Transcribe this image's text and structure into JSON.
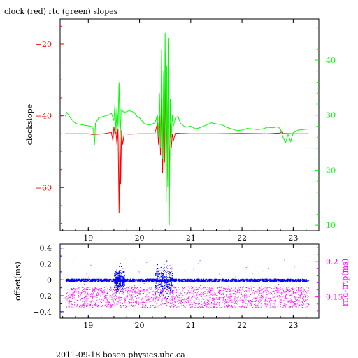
{
  "title": "clock (red) rtc (green) slopes",
  "footer": "2011-09-18 boson.physics.ubc.ca",
  "colors": {
    "clock": "#ff0000",
    "rtc": "#00ff00",
    "offset": "#0000ff",
    "rndtrip": "#ff00ff",
    "frame": "#000000"
  },
  "chart_data": [
    {
      "type": "line",
      "title": "clock (red) rtc (green) slopes",
      "x_range": [
        18.45,
        23.5
      ],
      "x_ticks": [
        19,
        20,
        21,
        22,
        23
      ],
      "y_left": {
        "label": "clockslope",
        "range": [
          -72,
          -13
        ],
        "ticks": [
          -60,
          -40,
          -20
        ]
      },
      "y_right": {
        "label": "",
        "range": [
          9,
          47.5
        ],
        "ticks": [
          10,
          20,
          30,
          40
        ]
      },
      "series": [
        {
          "axis": "left",
          "color": "#ff0000",
          "points": [
            [
              18.55,
              -45
            ],
            [
              19.0,
              -45
            ],
            [
              19.1,
              -45.2
            ],
            [
              19.3,
              -45
            ],
            [
              19.45,
              -44.6
            ],
            [
              19.48,
              -47
            ],
            [
              19.5,
              -43
            ],
            [
              19.52,
              -45
            ],
            [
              19.54,
              -44.5
            ],
            [
              19.56,
              -48
            ],
            [
              19.58,
              -43.5
            ],
            [
              19.6,
              -67
            ],
            [
              19.62,
              -41.5
            ],
            [
              19.63,
              -59
            ],
            [
              19.65,
              -44
            ],
            [
              19.67,
              -48
            ],
            [
              19.7,
              -45
            ],
            [
              19.8,
              -45.1
            ],
            [
              20.0,
              -45
            ],
            [
              20.2,
              -45
            ],
            [
              20.3,
              -45
            ],
            [
              20.35,
              -42
            ],
            [
              20.37,
              -48
            ],
            [
              20.39,
              -40
            ],
            [
              20.41,
              -51
            ],
            [
              20.43,
              -35
            ],
            [
              20.45,
              -56
            ],
            [
              20.47,
              -40
            ],
            [
              20.49,
              -53
            ],
            [
              20.5,
              -22
            ],
            [
              20.52,
              -61
            ],
            [
              20.53,
              -34
            ],
            [
              20.55,
              -58
            ],
            [
              20.56,
              -20
            ],
            [
              20.58,
              -59
            ],
            [
              20.6,
              -42
            ],
            [
              20.62,
              -49
            ],
            [
              20.64,
              -45
            ],
            [
              20.66,
              -47
            ],
            [
              20.7,
              -44.8
            ],
            [
              20.8,
              -44.9
            ],
            [
              21.0,
              -45
            ],
            [
              21.5,
              -45
            ],
            [
              22.0,
              -44.9
            ],
            [
              22.5,
              -45
            ],
            [
              22.75,
              -44.8
            ],
            [
              22.78,
              -44.2
            ],
            [
              22.8,
              -44.9
            ],
            [
              23.0,
              -45
            ],
            [
              23.3,
              -45
            ]
          ]
        },
        {
          "axis": "right",
          "color": "#00ff00",
          "points": [
            [
              18.55,
              29.8
            ],
            [
              18.58,
              30.5
            ],
            [
              18.65,
              29.5
            ],
            [
              18.75,
              28.5
            ],
            [
              18.9,
              28.2
            ],
            [
              19.05,
              28
            ],
            [
              19.1,
              27.5
            ],
            [
              19.12,
              24.5
            ],
            [
              19.14,
              28.5
            ],
            [
              19.2,
              29.5
            ],
            [
              19.3,
              29.8
            ],
            [
              19.4,
              30
            ],
            [
              19.45,
              30.4
            ],
            [
              19.5,
              29
            ],
            [
              19.52,
              32
            ],
            [
              19.54,
              27
            ],
            [
              19.56,
              31.5
            ],
            [
              19.58,
              28
            ],
            [
              19.6,
              36
            ],
            [
              19.62,
              25
            ],
            [
              19.64,
              31
            ],
            [
              19.7,
              30.5
            ],
            [
              19.8,
              30.8
            ],
            [
              19.9,
              30.5
            ],
            [
              19.95,
              29.8
            ],
            [
              20.0,
              29.5
            ],
            [
              20.1,
              28.4
            ],
            [
              20.2,
              28.2
            ],
            [
              20.3,
              28.6
            ],
            [
              20.35,
              30
            ],
            [
              20.37,
              26
            ],
            [
              20.39,
              34
            ],
            [
              20.41,
              24
            ],
            [
              20.43,
              42
            ],
            [
              20.45,
              22
            ],
            [
              20.47,
              38
            ],
            [
              20.48,
              20
            ],
            [
              20.5,
              45
            ],
            [
              20.52,
              14
            ],
            [
              20.53,
              39
            ],
            [
              20.55,
              17
            ],
            [
              20.56,
              44
            ],
            [
              20.58,
              10
            ],
            [
              20.6,
              33
            ],
            [
              20.62,
              26
            ],
            [
              20.64,
              30
            ],
            [
              20.66,
              28
            ],
            [
              20.7,
              29.5
            ],
            [
              20.75,
              29.8
            ],
            [
              20.8,
              28.5
            ],
            [
              20.9,
              27.8
            ],
            [
              21.0,
              28
            ],
            [
              21.1,
              27.5
            ],
            [
              21.2,
              27.8
            ],
            [
              21.3,
              28.2
            ],
            [
              21.4,
              28.6
            ],
            [
              21.5,
              28.4
            ],
            [
              21.6,
              28.3
            ],
            [
              21.7,
              27.8
            ],
            [
              21.8,
              27.5
            ],
            [
              21.9,
              27.2
            ],
            [
              22.0,
              27.3
            ],
            [
              22.1,
              27.6
            ],
            [
              22.2,
              27.5
            ],
            [
              22.3,
              27.4
            ],
            [
              22.4,
              27.5
            ],
            [
              22.5,
              27.8
            ],
            [
              22.6,
              27.7
            ],
            [
              22.7,
              27.9
            ],
            [
              22.75,
              27.5
            ],
            [
              22.8,
              26
            ],
            [
              22.85,
              25
            ],
            [
              22.9,
              26.5
            ],
            [
              22.95,
              25.2
            ],
            [
              23.0,
              26.8
            ],
            [
              23.1,
              27.3
            ],
            [
              23.2,
              27.4
            ],
            [
              23.3,
              27.5
            ]
          ]
        }
      ]
    },
    {
      "type": "scatter",
      "title": "",
      "x_range": [
        18.45,
        23.5
      ],
      "x_ticks": [
        19,
        20,
        21,
        22,
        23
      ],
      "y_left": {
        "label": "offset(ms)",
        "range": [
          -0.48,
          0.45
        ],
        "ticks": [
          -0.4,
          -0.2,
          0,
          0.2,
          0.4
        ]
      },
      "y_right": {
        "label": "rnd-trip(ms)",
        "range": [
          0.12,
          0.225
        ],
        "ticks": [
          0.15,
          0.2
        ]
      },
      "series": [
        {
          "name": "offset",
          "axis": "left",
          "color": "#0000ff",
          "baseline": 0,
          "band": 0.015,
          "bursts": [
            {
              "x_range": [
                19.5,
                19.7
              ],
              "spread": 0.15,
              "max": 0.45
            },
            {
              "x_range": [
                20.3,
                20.65
              ],
              "spread": 0.22,
              "max": 0.45
            }
          ]
        },
        {
          "name": "rnd-trip",
          "axis": "right",
          "color": "#ff00ff",
          "band_range": [
            0.135,
            0.165
          ],
          "outlier_max": 0.205
        }
      ]
    }
  ]
}
